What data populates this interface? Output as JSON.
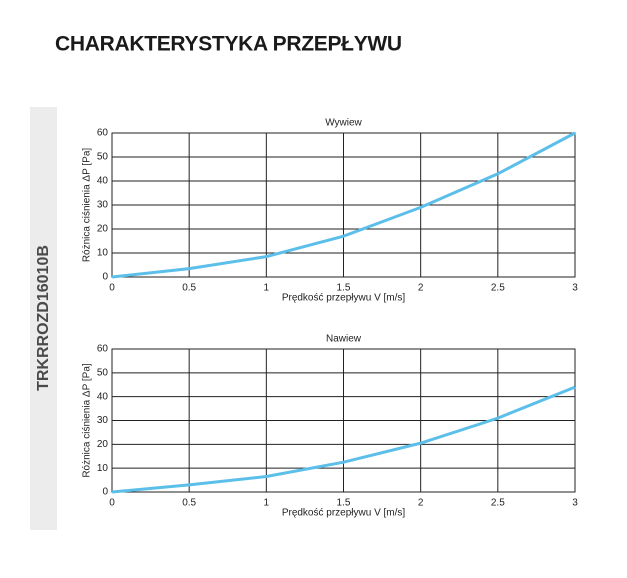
{
  "heading": "CHARAKTERYSTYKA PRZEPŁYWU",
  "side_label": "TRKRROZD16010B",
  "chart_data": [
    {
      "type": "line",
      "title": "Wywiew",
      "x_label": "Prędkość przepływu V [m/s]",
      "y_label": "Różnica ciśnienia ΔP [Pa]",
      "x": [
        0,
        0.5,
        1,
        1.5,
        2,
        2.5,
        3
      ],
      "series": [
        {
          "color": "#5bbfea",
          "values": [
            0,
            3.5,
            8.5,
            17,
            29,
            43,
            60
          ]
        }
      ],
      "xlim": [
        0,
        3
      ],
      "xticks": [
        0,
        0.5,
        1,
        1.5,
        2,
        2.5,
        3
      ],
      "ylim": [
        0,
        60
      ],
      "yticks": [
        0,
        10,
        20,
        30,
        40,
        50,
        60
      ],
      "grid": true
    },
    {
      "type": "line",
      "title": "Nawiew",
      "x_label": "Prędkość przepływu V [m/s]",
      "y_label": "Różnica ciśnienia ΔP [Pa]",
      "x": [
        0,
        0.5,
        1,
        1.5,
        2,
        2.5,
        3
      ],
      "series": [
        {
          "color": "#5bbfea",
          "values": [
            0,
            3,
            6.5,
            12.5,
            20.5,
            31,
            44
          ]
        }
      ],
      "xlim": [
        0,
        3
      ],
      "xticks": [
        0,
        0.5,
        1,
        1.5,
        2,
        2.5,
        3
      ],
      "ylim": [
        0,
        60
      ],
      "yticks": [
        0,
        10,
        20,
        30,
        40,
        50,
        60
      ],
      "grid": true
    }
  ]
}
